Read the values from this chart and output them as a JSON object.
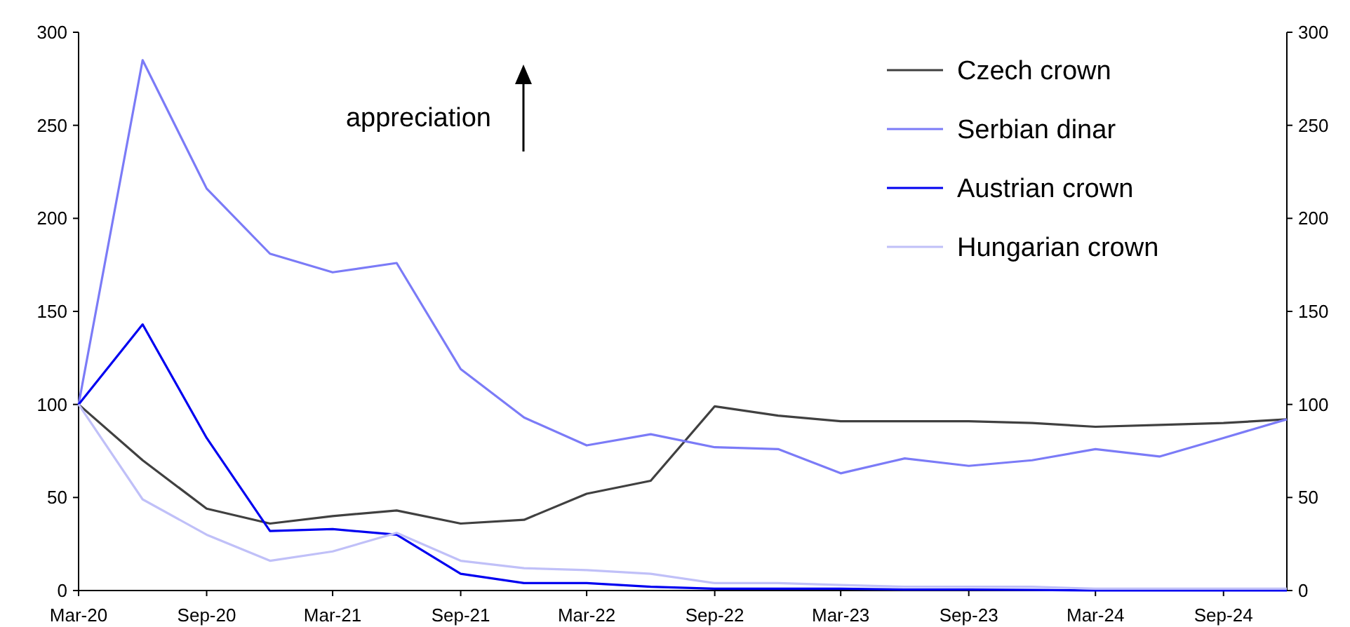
{
  "chart_data": {
    "type": "line",
    "x": [
      "2020-03",
      "2020-06",
      "2020-09",
      "2020-12",
      "2021-03",
      "2021-06",
      "2021-09",
      "2021-12",
      "2022-03",
      "2022-06",
      "2022-09",
      "2022-12",
      "2023-03",
      "2023-06",
      "2023-09",
      "2023-12",
      "2024-03",
      "2024-06",
      "2024-09",
      "2024-12"
    ],
    "series": [
      {
        "name": "Czech crown",
        "color": "#404040",
        "values": [
          100,
          70,
          44,
          36,
          40,
          43,
          36,
          38,
          52,
          59,
          99,
          94,
          91,
          91,
          91,
          90,
          88,
          89,
          90,
          92
        ]
      },
      {
        "name": "Serbian dinar",
        "color": "#7b7bf7",
        "values": [
          100,
          285,
          216,
          181,
          171,
          176,
          119,
          93,
          78,
          84,
          77,
          76,
          63,
          71,
          67,
          70,
          76,
          72,
          82,
          92
        ]
      },
      {
        "name": "Austrian crown",
        "color": "#0000f0",
        "values": [
          100,
          143,
          82,
          32,
          33,
          30,
          9,
          4,
          4,
          2,
          1,
          1,
          1,
          0.5,
          0.5,
          0.3,
          0,
          0,
          0,
          0
        ]
      },
      {
        "name": "Hungarian crown",
        "color": "#c0c0f8",
        "values": [
          100,
          49,
          30,
          16,
          21,
          31,
          16,
          12,
          11,
          9,
          4,
          4,
          3,
          2,
          2,
          2,
          1,
          1,
          1,
          1
        ]
      }
    ],
    "xlim": [
      "2020-03",
      "2024-12"
    ],
    "xticks": [
      {
        "value": "2020-03",
        "label": "Mar-20"
      },
      {
        "value": "2020-09",
        "label": "Sep-20"
      },
      {
        "value": "2021-03",
        "label": "Mar-21"
      },
      {
        "value": "2021-09",
        "label": "Sep-21"
      },
      {
        "value": "2022-03",
        "label": "Mar-22"
      },
      {
        "value": "2022-09",
        "label": "Sep-22"
      },
      {
        "value": "2023-03",
        "label": "Mar-23"
      },
      {
        "value": "2023-09",
        "label": "Sep-23"
      },
      {
        "value": "2024-03",
        "label": "Mar-24"
      },
      {
        "value": "2024-09",
        "label": "Sep-24"
      }
    ],
    "ylim": [
      0,
      300
    ],
    "yticks": [
      0,
      50,
      100,
      150,
      200,
      250,
      300
    ],
    "y2lim": [
      0,
      300
    ],
    "y2ticks": [
      0,
      50,
      100,
      150,
      200,
      250,
      300
    ],
    "annotations": [
      "appreciation"
    ],
    "legend": "top right",
    "grid": false,
    "marker": "none",
    "line_style": "solid"
  }
}
